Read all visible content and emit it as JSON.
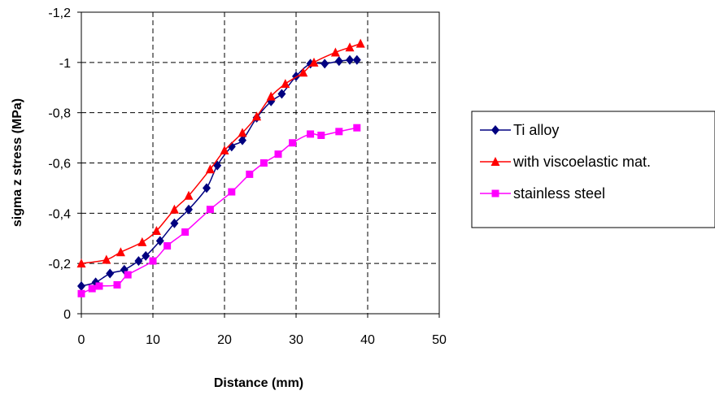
{
  "chart_data": {
    "type": "line",
    "xlabel": "Distance (mm)",
    "ylabel": "sigma z stress (MPa)",
    "xlim": [
      0,
      50
    ],
    "ylim": [
      0,
      -1.2
    ],
    "x_ticks": [
      0,
      10,
      20,
      30,
      40,
      50
    ],
    "y_ticks": [
      0,
      -0.2,
      -0.4,
      -0.6,
      -0.8,
      -1,
      -1.2
    ],
    "x_tick_labels": [
      "0",
      "10",
      "20",
      "30",
      "40",
      "50"
    ],
    "y_tick_labels": [
      "0",
      "-0,2",
      "-0,4",
      "-0,6",
      "-0,8",
      "-1",
      "-1,2"
    ],
    "grid": true,
    "legend_position": "right",
    "series": [
      {
        "name": "Ti alloy",
        "color": "#000080",
        "marker": "diamond",
        "x": [
          0,
          2,
          4,
          6,
          8,
          9,
          11,
          13,
          15,
          17.5,
          19,
          21,
          22.5,
          24.5,
          26.5,
          28,
          30,
          32,
          34,
          36,
          37.5,
          38.5
        ],
        "y": [
          -0.11,
          -0.125,
          -0.16,
          -0.175,
          -0.21,
          -0.23,
          -0.29,
          -0.36,
          -0.415,
          -0.5,
          -0.59,
          -0.665,
          -0.69,
          -0.78,
          -0.845,
          -0.875,
          -0.945,
          -0.995,
          -0.995,
          -1.005,
          -1.01,
          -1.01
        ]
      },
      {
        "name": "with viscoelastic mat.",
        "color": "#ff0000",
        "marker": "triangle",
        "x": [
          0,
          3.5,
          5.5,
          8.5,
          10.5,
          13,
          15,
          18,
          20,
          22.5,
          24.5,
          26.5,
          28.5,
          31,
          32.5,
          35.5,
          37.5,
          39
        ],
        "y": [
          -0.2,
          -0.215,
          -0.245,
          -0.285,
          -0.33,
          -0.415,
          -0.47,
          -0.575,
          -0.65,
          -0.72,
          -0.785,
          -0.865,
          -0.915,
          -0.96,
          -1.0,
          -1.04,
          -1.06,
          -1.075
        ]
      },
      {
        "name": "stainless steel",
        "color": "#ff00ff",
        "marker": "square",
        "x": [
          0,
          1.5,
          2.5,
          5,
          6.5,
          10,
          12,
          14.5,
          18,
          21,
          23.5,
          25.5,
          27.5,
          29.5,
          32,
          33.5,
          36,
          38.5
        ],
        "y": [
          -0.08,
          -0.1,
          -0.11,
          -0.115,
          -0.155,
          -0.21,
          -0.27,
          -0.325,
          -0.415,
          -0.485,
          -0.555,
          -0.6,
          -0.635,
          -0.68,
          -0.715,
          -0.71,
          -0.725,
          -0.74
        ]
      }
    ]
  }
}
